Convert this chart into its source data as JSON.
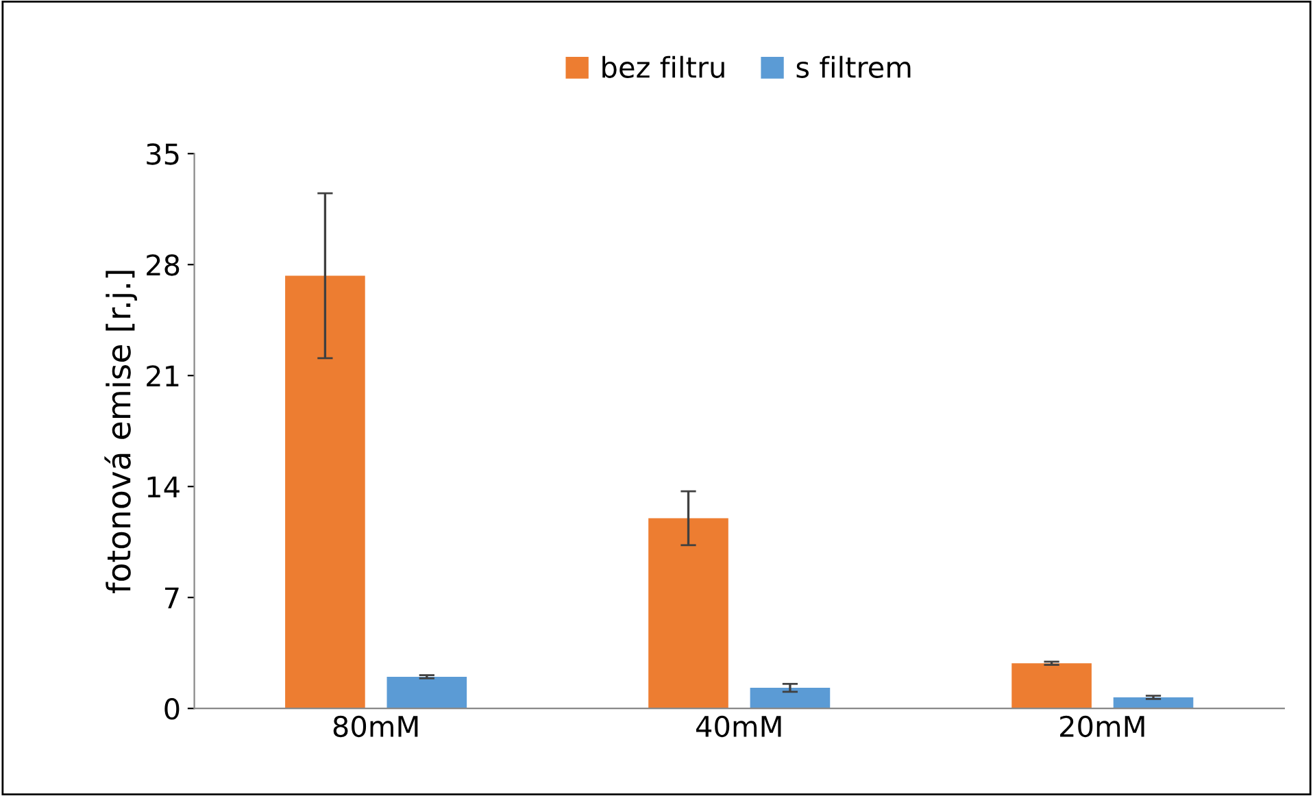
{
  "chart_data": {
    "type": "bar",
    "ylabel": "fotonová emise [r.j.]",
    "categories": [
      "80mM",
      "40mM",
      "20mM"
    ],
    "series": [
      {
        "name": "bez filtru",
        "color": "#ed7d31",
        "values": [
          27.3,
          12.0,
          2.85
        ],
        "errors": [
          5.2,
          1.7,
          0.1
        ]
      },
      {
        "name": "s filtrem",
        "color": "#5b9bd5",
        "values": [
          2.0,
          1.3,
          0.7
        ],
        "errors": [
          0.1,
          0.25,
          0.1
        ]
      }
    ],
    "ylim": [
      0,
      35
    ],
    "yticks": [
      0,
      7,
      14,
      21,
      28,
      35
    ],
    "legend": "top",
    "grid": false
  }
}
